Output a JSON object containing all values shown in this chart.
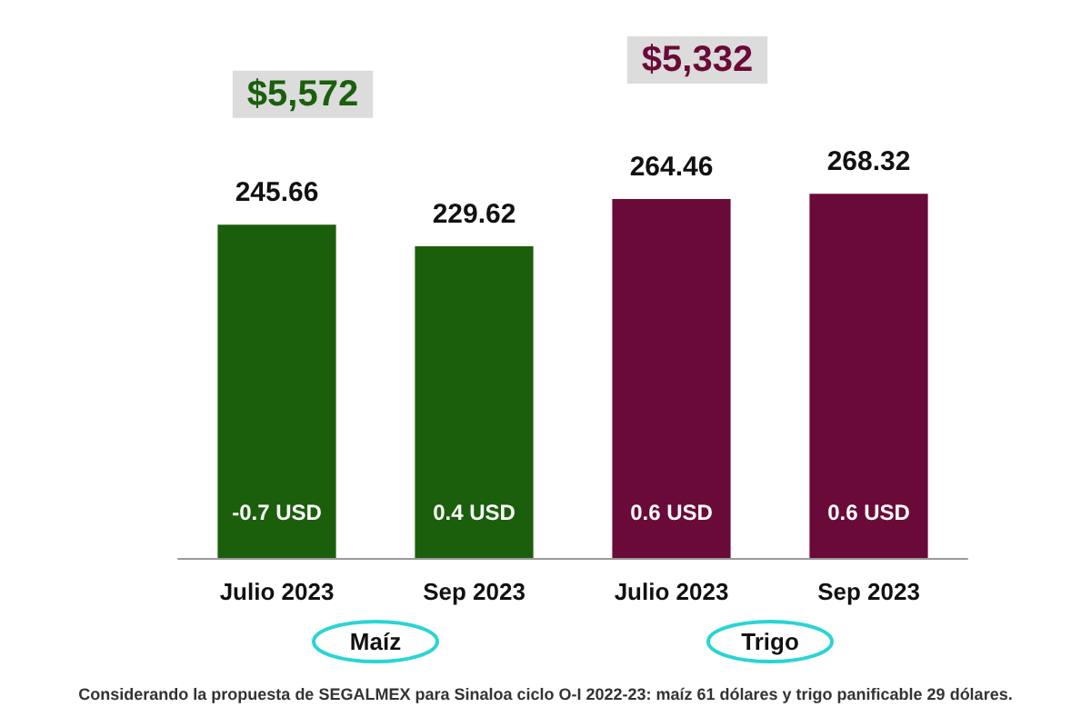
{
  "chart_data": {
    "type": "bar",
    "categories": [
      "Julio 2023",
      "Sep 2023",
      "Julio 2023",
      "Sep 2023"
    ],
    "values": [
      245.66,
      229.62,
      264.46,
      268.32
    ],
    "colors": [
      "#1b5e0c",
      "#1b5e0c",
      "#6a0a38",
      "#6a0a38"
    ],
    "tick_labels": "x",
    "data_labels": true,
    "grid": false,
    "annotations": [
      "-0.7 USD",
      "0.4 USD",
      "0.6 USD",
      "0.6 USD",
      "$5,572",
      "$5,332",
      "Maíz",
      "Trigo",
      "Considerando la propuesta de SEGALMEX para Sinaloa ciclo O-I 2022-23: maíz 61 dólares y trigo panificable 29 dólares."
    ]
  }
}
